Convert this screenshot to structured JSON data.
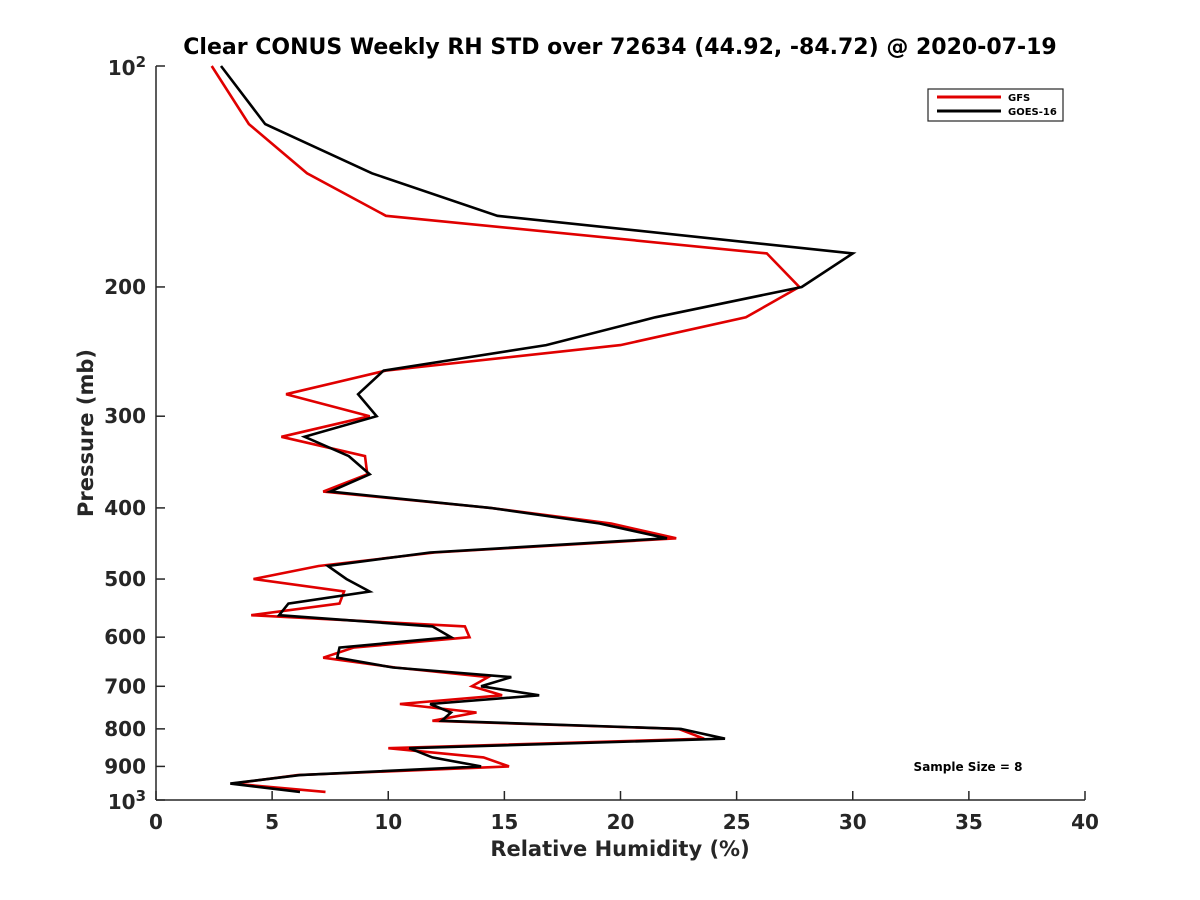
{
  "chart_data": {
    "type": "line",
    "title": "Clear CONUS Weekly RH STD over 72634 (44.92, -84.72) @ 2020-07-19",
    "xlabel": "Relative Humidity (%)",
    "ylabel": "Pressure (mb)",
    "xlim": [
      0,
      40
    ],
    "ylim": [
      100,
      1000
    ],
    "yscale": "log",
    "y_reversed": true,
    "grid": false,
    "xticks": [
      0,
      5,
      10,
      15,
      20,
      25,
      30,
      35,
      40
    ],
    "xtick_labels": [
      "0",
      "5",
      "10",
      "15",
      "20",
      "25",
      "30",
      "35",
      "40"
    ],
    "yticks": [
      100,
      200,
      300,
      400,
      500,
      600,
      700,
      800,
      900,
      1000
    ],
    "ytick_labels": [
      {
        "base": "10",
        "sup": "2"
      },
      {
        "base": "200",
        "sup": ""
      },
      {
        "base": "300",
        "sup": ""
      },
      {
        "base": "400",
        "sup": ""
      },
      {
        "base": "500",
        "sup": ""
      },
      {
        "base": "600",
        "sup": ""
      },
      {
        "base": "700",
        "sup": ""
      },
      {
        "base": "800",
        "sup": ""
      },
      {
        "base": "900",
        "sup": ""
      },
      {
        "base": "10",
        "sup": "3"
      }
    ],
    "legend_position": "top-right",
    "annotation": "Sample Size = 8",
    "pressure": [
      100,
      120,
      140,
      160,
      180,
      200,
      220,
      240,
      260,
      280,
      300,
      320,
      340,
      360,
      380,
      400,
      420,
      440,
      460,
      480,
      500,
      520,
      540,
      560,
      580,
      600,
      620,
      640,
      660,
      680,
      700,
      720,
      740,
      760,
      780,
      800,
      825,
      850,
      875,
      900,
      925,
      950,
      975
    ],
    "series": [
      {
        "name": "GFS",
        "color": "#e00000",
        "values": [
          2.4,
          4.0,
          6.5,
          9.9,
          26.3,
          27.7,
          25.4,
          20.0,
          9.9,
          5.6,
          9.2,
          5.4,
          9.0,
          9.1,
          7.2,
          14.4,
          19.6,
          22.4,
          12.0,
          7.0,
          4.2,
          8.1,
          7.9,
          4.1,
          13.3,
          13.5,
          8.5,
          7.2,
          10.3,
          14.3,
          13.6,
          14.9,
          10.5,
          13.8,
          11.9,
          22.5,
          23.6,
          10.0,
          14.1,
          15.2,
          6.1,
          3.3,
          7.3
        ]
      },
      {
        "name": "GOES-16",
        "color": "#000000",
        "values": [
          2.8,
          4.7,
          9.3,
          14.7,
          30.0,
          27.8,
          21.5,
          16.8,
          9.8,
          8.7,
          9.5,
          6.4,
          8.3,
          9.2,
          7.5,
          14.4,
          19.1,
          22.0,
          11.8,
          7.4,
          8.2,
          9.2,
          5.7,
          5.3,
          11.9,
          12.7,
          7.9,
          7.8,
          10.2,
          15.3,
          14.0,
          16.5,
          11.8,
          12.7,
          12.3,
          22.6,
          24.5,
          10.9,
          11.9,
          14.0,
          6.2,
          3.2,
          6.2
        ]
      }
    ]
  }
}
